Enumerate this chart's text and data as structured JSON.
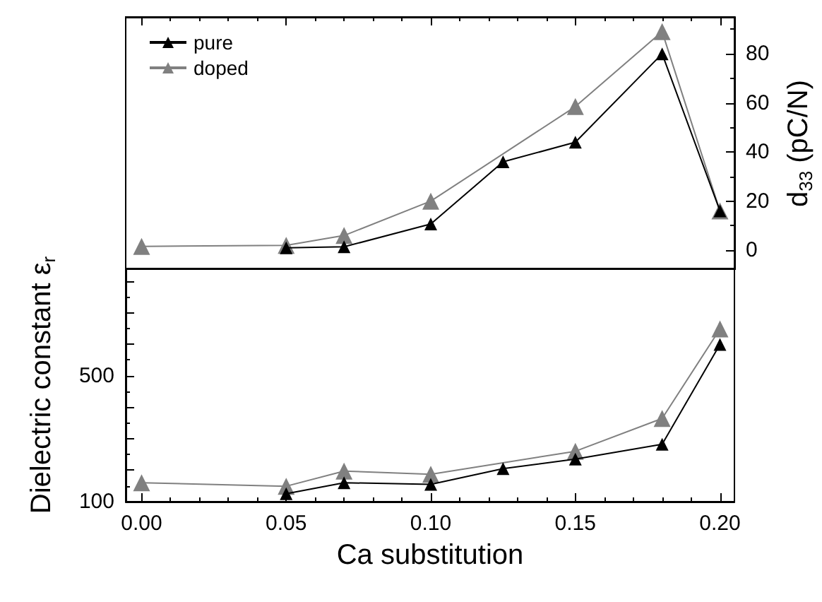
{
  "chart_data": [
    {
      "type": "line",
      "series": [
        {
          "name": "pure",
          "color": "#000000",
          "x": [
            0.05,
            0.07,
            0.1,
            0.125,
            0.15,
            0.18,
            0.2
          ],
          "values": [
            1,
            1.4,
            10.7,
            36,
            44,
            80,
            16
          ]
        },
        {
          "name": "doped",
          "color": "#808080",
          "x": [
            0,
            0.05,
            0.07,
            0.1,
            0.15,
            0.18,
            0.2
          ],
          "values": [
            1.6,
            2,
            6,
            20,
            58.5,
            89,
            16
          ]
        }
      ],
      "xlim": [
        -0.0055,
        0.205
      ],
      "xticks": [
        {
          "value": 0,
          "label": null
        },
        {
          "value": 0.05,
          "label": null
        },
        {
          "value": 0.1,
          "label": null
        },
        {
          "value": 0.15,
          "label": null
        },
        {
          "value": 0.2,
          "label": null
        }
      ],
      "ylim": [
        -8,
        95
      ],
      "yticks": [
        0,
        20,
        40,
        60,
        80
      ],
      "ylabel": "d$_{33}$ (pC/N)",
      "tick_labels": "y",
      "legend": "top left",
      "marker": "triangle",
      "line_style": "solid"
    },
    {
      "type": "line",
      "series": [
        {
          "color": "#000000",
          "x": [
            0.05,
            0.07,
            0.1,
            0.125,
            0.15,
            0.18,
            0.2
          ],
          "values": [
            125,
            160,
            155,
            205,
            235,
            282,
            599
          ]
        },
        {
          "color": "#808080",
          "x": [
            0,
            0.05,
            0.07,
            0.1,
            0.15,
            0.18,
            0.2
          ],
          "values": [
            160,
            149,
            197,
            187,
            260,
            364,
            648
          ]
        }
      ],
      "xlim": [
        -0.0055,
        0.205
      ],
      "xticks": [
        {
          "value": 0,
          "label": "0.00"
        },
        {
          "value": 0.05,
          "label": "0.05"
        },
        {
          "value": 0.1,
          "label": "0.10"
        },
        {
          "value": 0.15,
          "label": "0.15"
        },
        {
          "value": 0.2,
          "label": "0.20"
        }
      ],
      "ylim": [
        100,
        840
      ],
      "yticks": [
        100,
        {
          "value": 200,
          "label": null
        },
        {
          "value": 300,
          "label": null
        },
        {
          "value": 400,
          "label": null
        },
        500,
        {
          "value": 600,
          "label": null
        },
        {
          "value": 700,
          "label": null
        },
        {
          "value": 800,
          "label": null
        }
      ],
      "xlabel": "Ca substitution",
      "ylabel": "Dielectric constant ε$_{r}$",
      "marker": "triangle",
      "line_style": "solid"
    }
  ]
}
